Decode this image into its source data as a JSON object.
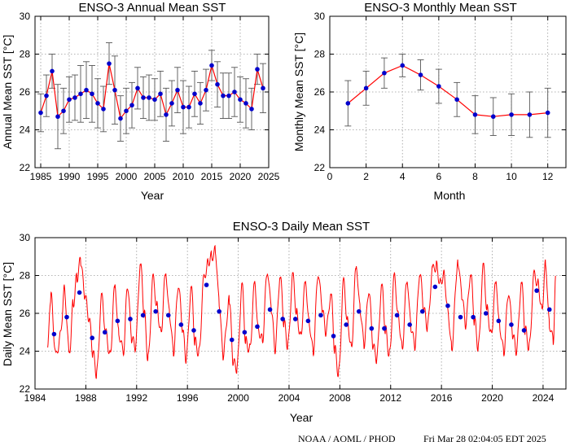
{
  "colors": {
    "line": "#ff0000",
    "point": "#0000cc",
    "errorbar": "#555555",
    "grid": "#9a9a9a"
  },
  "footer": {
    "left": "NOAA / AOML / PHOD",
    "right": "Fri Mar 28 02:04:05 EDT 2025"
  },
  "chart_data": [
    {
      "type": "line",
      "title": "ENSO-3 Annual Mean SST",
      "xlabel": "Year",
      "ylabel": "Annual Mean SST [°C]",
      "xlim": [
        1984,
        2025
      ],
      "ylim": [
        22,
        30
      ],
      "xticks": [
        1985,
        1990,
        1995,
        2000,
        2005,
        2010,
        2015,
        2020,
        2025
      ],
      "yticks": [
        22,
        24,
        26,
        28,
        30
      ],
      "grid": true,
      "series": [
        {
          "x": [
            1985,
            1986,
            1987,
            1988,
            1989,
            1990,
            1991,
            1992,
            1993,
            1994,
            1995,
            1996,
            1997,
            1998,
            1999,
            2000,
            2001,
            2002,
            2003,
            2004,
            2005,
            2006,
            2007,
            2008,
            2009,
            2010,
            2011,
            2012,
            2013,
            2014,
            2015,
            2016,
            2017,
            2018,
            2019,
            2020,
            2021,
            2022,
            2023,
            2024
          ],
          "y": [
            24.9,
            25.8,
            27.1,
            24.7,
            25.0,
            25.6,
            25.7,
            25.9,
            26.1,
            25.9,
            25.4,
            25.1,
            27.5,
            26.1,
            24.6,
            25.0,
            25.3,
            26.2,
            25.7,
            25.7,
            25.6,
            25.9,
            24.8,
            25.4,
            26.1,
            25.2,
            25.2,
            25.9,
            25.4,
            26.1,
            27.4,
            26.4,
            25.8,
            25.8,
            26.0,
            25.6,
            25.4,
            25.1,
            27.2,
            26.2
          ],
          "err": [
            1.0,
            1.1,
            0.9,
            1.7,
            1.2,
            1.2,
            1.2,
            1.5,
            1.5,
            1.5,
            1.3,
            1.2,
            1.1,
            1.8,
            1.2,
            1.2,
            1.2,
            1.1,
            1.1,
            1.2,
            1.1,
            1.2,
            1.4,
            1.2,
            1.2,
            1.4,
            1.1,
            1.2,
            1.1,
            1.1,
            0.8,
            1.2,
            1.2,
            1.2,
            1.3,
            1.2,
            1.3,
            1.1,
            0.8,
            1.3
          ]
        }
      ]
    },
    {
      "type": "line",
      "title": "ENSO-3 Monthly Mean SST",
      "xlabel": "Month",
      "ylabel": "Monthly Mean SST [°C]",
      "xlim": [
        0,
        13
      ],
      "ylim": [
        22,
        30
      ],
      "xticks": [
        0,
        2,
        4,
        6,
        8,
        10,
        12
      ],
      "yticks": [
        22,
        24,
        26,
        28,
        30
      ],
      "grid": true,
      "series": [
        {
          "x": [
            1,
            2,
            3,
            4,
            5,
            6,
            7,
            8,
            9,
            10,
            11,
            12
          ],
          "y": [
            25.4,
            26.2,
            27.0,
            27.4,
            26.9,
            26.3,
            25.6,
            24.8,
            24.7,
            24.8,
            24.8,
            24.9
          ],
          "err": [
            1.2,
            0.9,
            0.8,
            0.6,
            0.8,
            0.9,
            0.9,
            1.0,
            1.0,
            1.1,
            1.2,
            1.3
          ]
        }
      ]
    },
    {
      "type": "line",
      "title": "ENSO-3 Daily Mean SST",
      "xlabel": "Year",
      "ylabel": "Daily Mean SST [°C]",
      "xlim": [
        1984,
        2025.8
      ],
      "ylim": [
        22,
        30
      ],
      "xticks": [
        1984,
        1988,
        1992,
        1996,
        2000,
        2004,
        2008,
        2012,
        2016,
        2020,
        2024
      ],
      "yticks": [
        22,
        24,
        26,
        28,
        30
      ],
      "grid": true,
      "series": [
        {
          "name": "",
          "x": [
            1985.0,
            1985.25,
            1985.65,
            1986.0,
            1986.3,
            1986.7,
            1987.0,
            1987.3,
            1987.6,
            1987.9,
            1988.25,
            1988.55,
            1988.85,
            1989.25,
            1989.6,
            1989.9,
            1990.3,
            1990.6,
            1990.95,
            1991.3,
            1991.6,
            1991.9,
            1992.3,
            1992.6,
            1992.9,
            1993.3,
            1993.6,
            1993.9,
            1994.3,
            1994.6,
            1994.9,
            1995.3,
            1995.6,
            1995.9,
            1996.3,
            1996.6,
            1996.9,
            1997.3,
            1997.6,
            1997.9,
            1998.2,
            1998.5,
            1998.8,
            1999.3,
            1999.6,
            1999.9,
            2000.3,
            2000.6,
            2000.9,
            2001.3,
            2001.6,
            2001.9,
            2002.3,
            2002.6,
            2002.9,
            2003.3,
            2003.6,
            2003.9,
            2004.3,
            2004.6,
            2004.9,
            2005.3,
            2005.6,
            2005.9,
            2006.3,
            2006.6,
            2006.9,
            2007.3,
            2007.6,
            2007.9,
            2008.3,
            2008.6,
            2008.9,
            2009.3,
            2009.6,
            2009.9,
            2010.3,
            2010.6,
            2010.9,
            2011.3,
            2011.6,
            2011.9,
            2012.3,
            2012.6,
            2012.9,
            2013.3,
            2013.6,
            2013.9,
            2014.3,
            2014.6,
            2014.9,
            2015.3,
            2015.6,
            2015.9,
            2016.2,
            2016.5,
            2016.8,
            2017.3,
            2017.6,
            2017.9,
            2018.3,
            2018.6,
            2018.9,
            2019.3,
            2019.6,
            2019.9,
            2020.3,
            2020.6,
            2020.9,
            2021.3,
            2021.6,
            2021.9,
            2022.3,
            2022.6,
            2022.9,
            2023.3,
            2023.6,
            2023.9,
            2024.2,
            2024.5,
            2024.8,
            2025.0
          ],
          "y": [
            24.2,
            26.9,
            23.7,
            24.8,
            27.3,
            23.9,
            26.5,
            27.9,
            28.8,
            27.0,
            25.8,
            23.9,
            22.8,
            26.8,
            24.9,
            23.8,
            27.4,
            24.9,
            24.0,
            27.5,
            24.7,
            24.2,
            28.6,
            26.0,
            23.6,
            27.8,
            26.4,
            25.0,
            28.1,
            25.9,
            24.0,
            27.6,
            25.2,
            23.6,
            27.3,
            24.5,
            23.9,
            27.8,
            28.7,
            29.0,
            29.3,
            26.6,
            23.8,
            26.7,
            23.4,
            23.1,
            27.4,
            24.5,
            24.1,
            27.5,
            25.1,
            24.6,
            28.3,
            26.3,
            24.1,
            28.0,
            25.5,
            24.3,
            27.9,
            26.0,
            24.8,
            27.6,
            25.4,
            24.0,
            28.2,
            26.3,
            25.0,
            27.0,
            24.1,
            22.8,
            27.6,
            25.6,
            24.2,
            28.5,
            26.2,
            24.4,
            27.3,
            24.3,
            23.6,
            27.4,
            25.1,
            23.8,
            27.9,
            25.9,
            24.2,
            27.8,
            25.3,
            24.3,
            28.2,
            26.2,
            25.3,
            28.3,
            28.5,
            27.6,
            28.1,
            26.2,
            24.2,
            28.8,
            27.0,
            25.4,
            28.1,
            25.6,
            24.2,
            28.4,
            26.2,
            24.9,
            27.6,
            25.2,
            24.0,
            27.2,
            24.9,
            24.0,
            27.6,
            25.1,
            24.2,
            28.0,
            27.6,
            26.2,
            28.6,
            25.4,
            24.6,
            27.8
          ]
        },
        {
          "name": "",
          "x": [
            1985.5,
            1986.5,
            1987.5,
            1988.5,
            1989.5,
            1990.5,
            1991.5,
            1992.5,
            1993.5,
            1994.5,
            1995.5,
            1996.5,
            1997.5,
            1998.5,
            1999.5,
            2000.5,
            2001.5,
            2002.5,
            2003.5,
            2004.5,
            2005.5,
            2006.5,
            2007.5,
            2008.5,
            2009.5,
            2010.5,
            2011.5,
            2012.5,
            2013.5,
            2014.5,
            2015.5,
            2016.5,
            2017.5,
            2018.5,
            2019.5,
            2020.5,
            2021.5,
            2022.5,
            2023.5,
            2024.5
          ],
          "y": [
            24.9,
            25.8,
            27.1,
            24.7,
            25.0,
            25.6,
            25.7,
            25.9,
            26.1,
            25.9,
            25.4,
            25.1,
            27.5,
            26.1,
            24.6,
            25.0,
            25.3,
            26.2,
            25.7,
            25.7,
            25.6,
            25.9,
            24.8,
            25.4,
            26.1,
            25.2,
            25.2,
            25.9,
            25.4,
            26.1,
            27.4,
            26.4,
            25.8,
            25.8,
            26.0,
            25.6,
            25.4,
            25.1,
            27.2,
            26.2
          ]
        }
      ]
    }
  ]
}
